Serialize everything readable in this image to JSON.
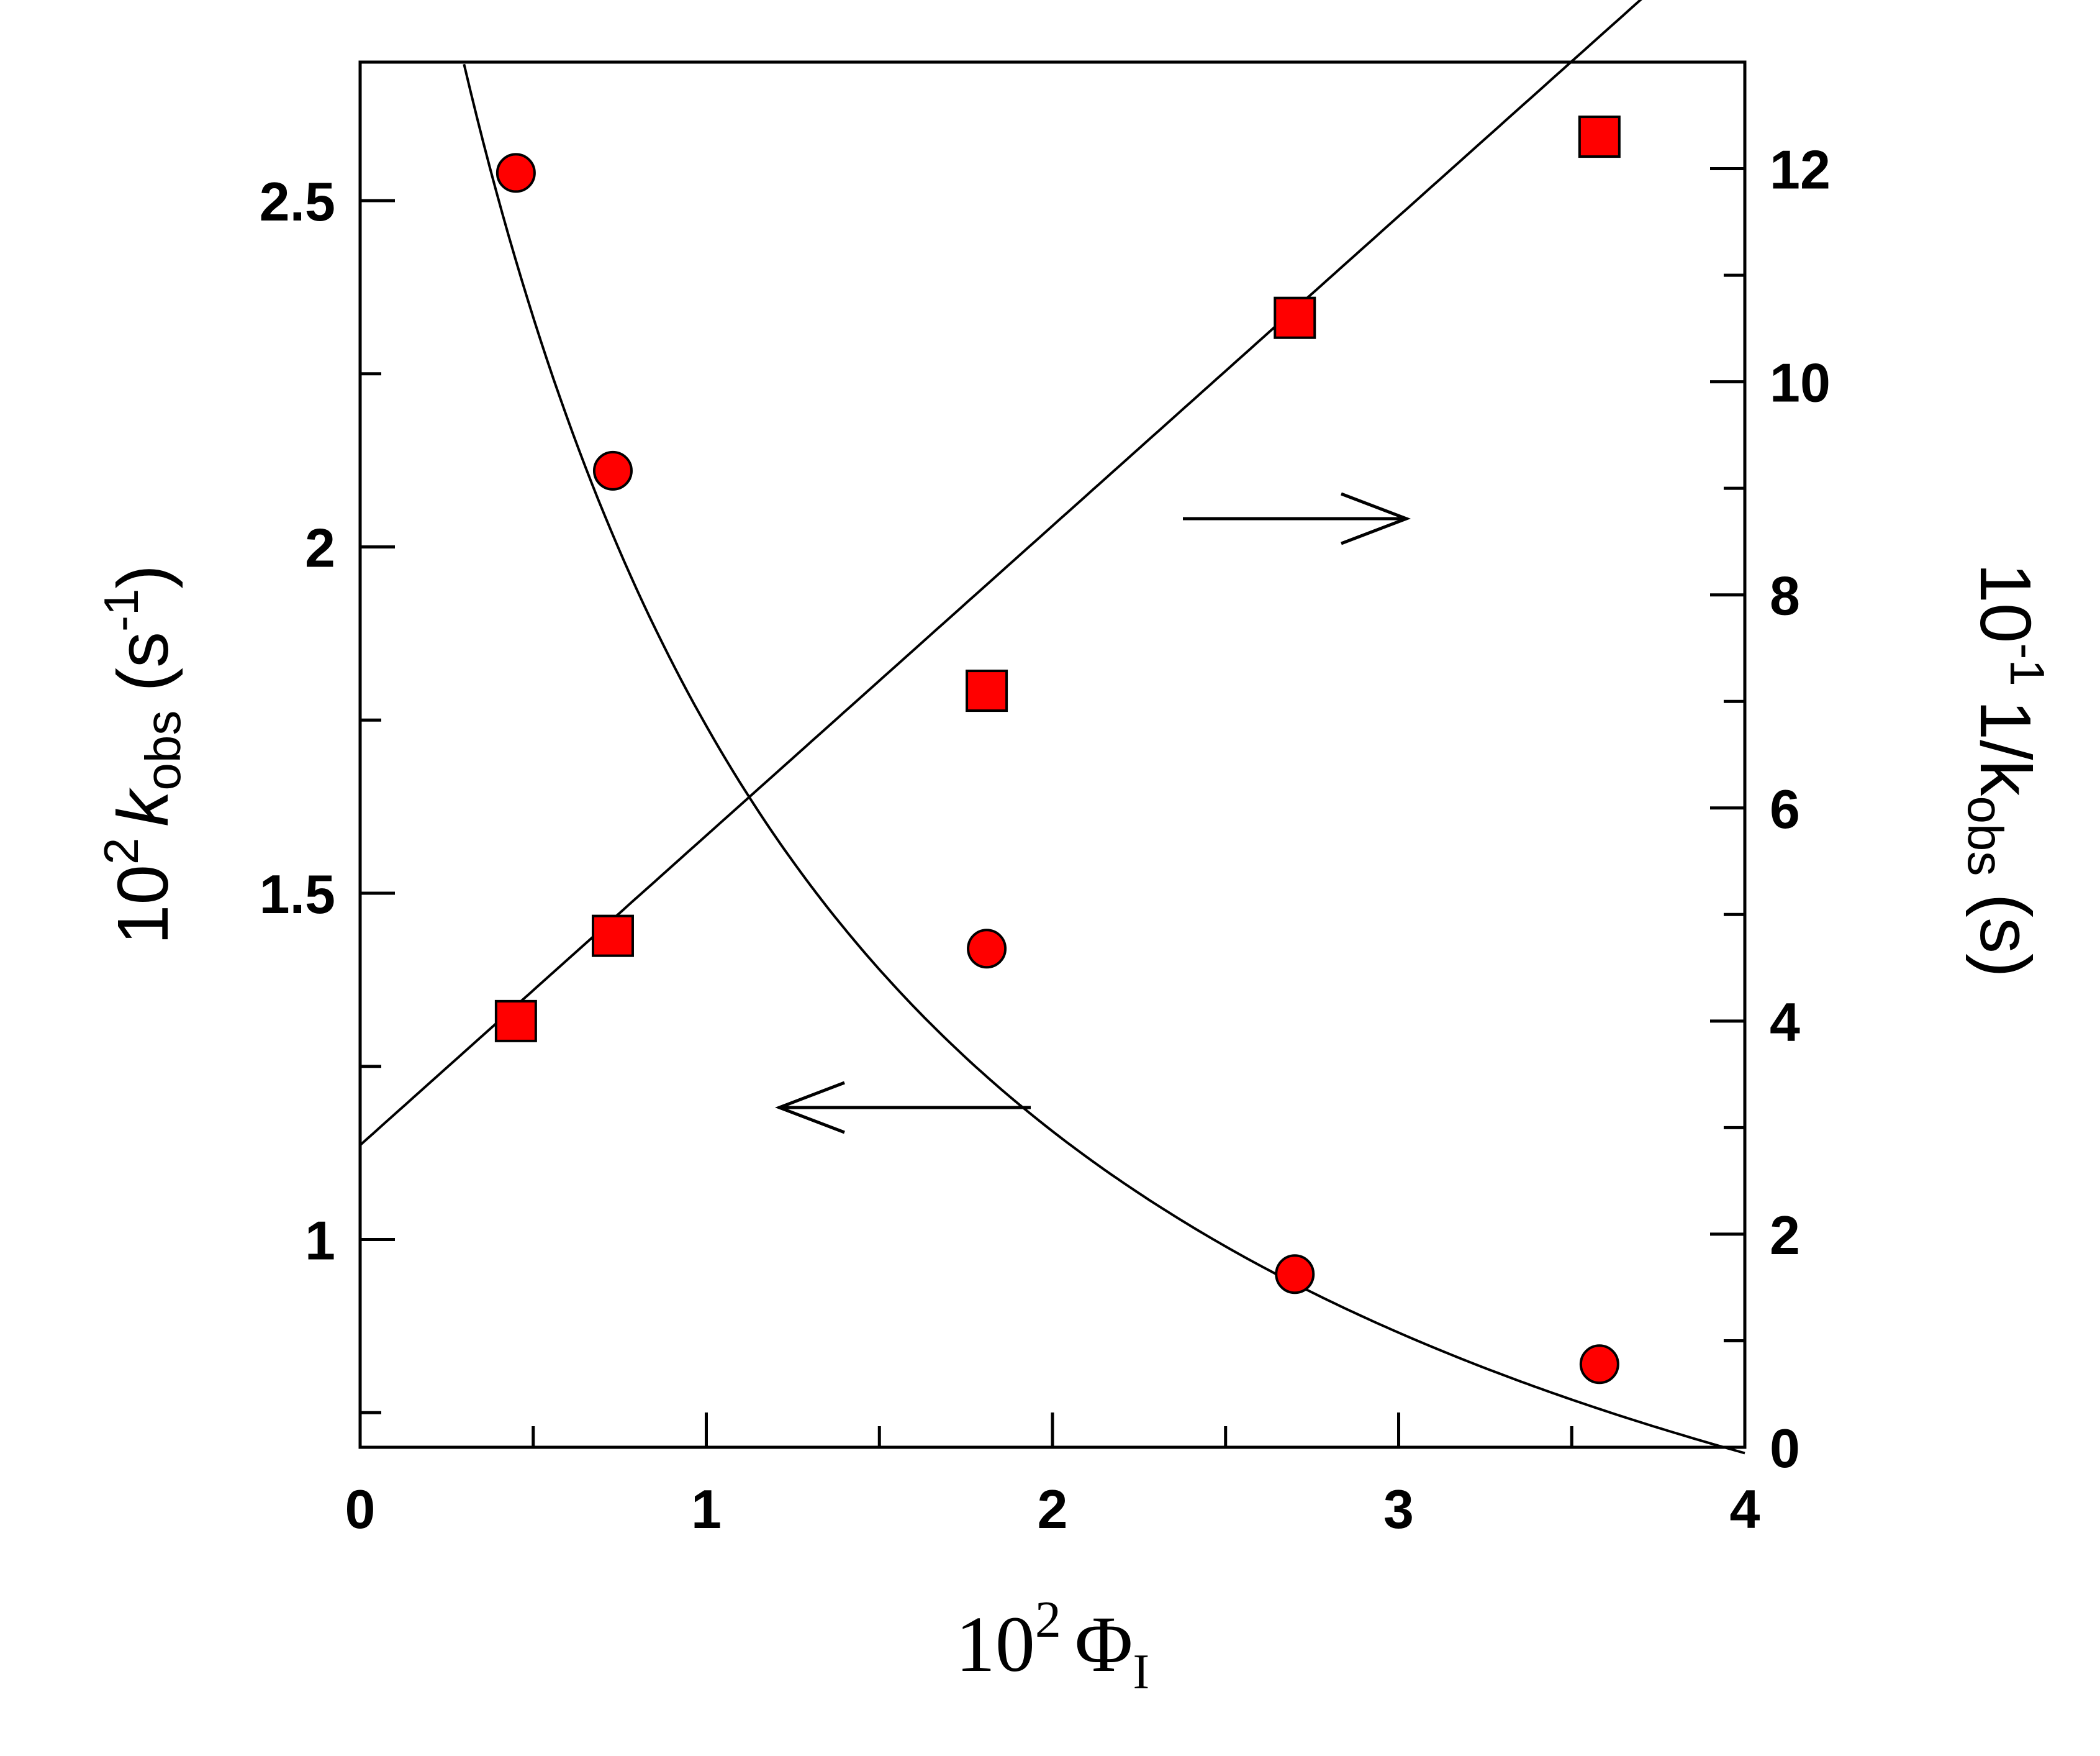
{
  "chart_data": {
    "type": "scatter",
    "xlabel": {
      "prefix": "10",
      "exp": "2",
      "symbol": "Φ",
      "sub": "I"
    },
    "ylabel_left": {
      "prefix": "10",
      "exp": "2",
      "symbol": "k",
      "sub": "obs",
      "unit_open": "(s",
      "unit_exp": "-1",
      "unit_close": ")"
    },
    "ylabel_right": {
      "prefix": "10",
      "exp": "-1",
      "symbol": "1/k",
      "sub": "obs",
      "unit": "(s)"
    },
    "xlim": [
      0,
      4
    ],
    "ylim_left": [
      0.7,
      2.7
    ],
    "ylim_right": [
      0,
      13
    ],
    "x_ticks": [
      "0",
      "1",
      "2",
      "3",
      "4"
    ],
    "y_left_ticks": [
      "1",
      "1.5",
      "2",
      "2.5"
    ],
    "y_right_ticks": [
      "0",
      "2",
      "4",
      "6",
      "8",
      "10",
      "12"
    ],
    "series": [
      {
        "axis": "left",
        "marker": "circle",
        "color": "#ff0000",
        "x": [
          0.45,
          0.73,
          1.81,
          2.7,
          3.58
        ],
        "y": [
          2.54,
          2.11,
          1.42,
          0.95,
          0.82
        ]
      },
      {
        "axis": "right",
        "marker": "square",
        "color": "#ff0000",
        "x": [
          0.45,
          0.73,
          1.81,
          2.7,
          3.58
        ],
        "y": [
          4.0,
          4.8,
          7.1,
          10.6,
          12.3
        ]
      }
    ],
    "fits": [
      {
        "axis": "left",
        "form": "1/(a+b*x)",
        "a": 0.2836,
        "b": 0.2906,
        "x_range": [
          0.3,
          4.0
        ]
      },
      {
        "axis": "right",
        "form": "a+b*x",
        "a": 2.836,
        "b": 2.906,
        "x_range": [
          0,
          3.78
        ]
      }
    ],
    "annotations": [
      {
        "type": "arrow",
        "direction": "right",
        "points_to": "right-axis"
      },
      {
        "type": "arrow",
        "direction": "left",
        "points_to": "left-axis"
      }
    ]
  }
}
